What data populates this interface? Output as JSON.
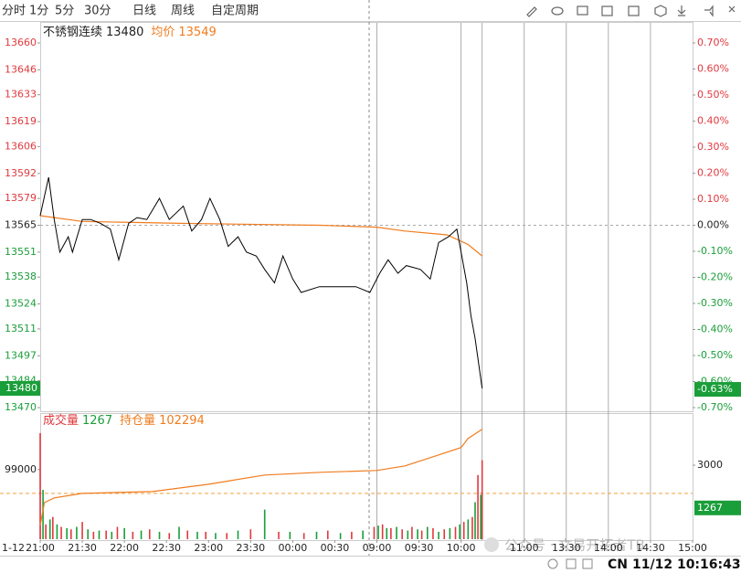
{
  "toolbar": {
    "tabs": [
      "分时",
      "1分",
      "5分",
      "30分",
      "日线",
      "周线",
      "自定周期"
    ]
  },
  "chart_data": [
    {
      "type": "line",
      "title": "不锈钢连续",
      "last": 13480,
      "avg_label": "均价",
      "avg": 13549,
      "last_change": {
        "value": -0.63,
        "label": "-0.63%"
      },
      "date_label": "1-12",
      "xlim": [
        0,
        465
      ],
      "xticks": [
        {
          "value": 0,
          "label": "21:00"
        },
        {
          "value": 30,
          "label": "21:30"
        },
        {
          "value": 60,
          "label": "22:00"
        },
        {
          "value": 90,
          "label": "22:30"
        },
        {
          "value": 120,
          "label": "23:00"
        },
        {
          "value": 150,
          "label": "23:30"
        },
        {
          "value": 180,
          "label": "00:00"
        },
        {
          "value": 210,
          "label": "00:30"
        },
        {
          "value": 240,
          "label": "09:00"
        },
        {
          "value": 270,
          "label": "09:30"
        },
        {
          "value": 300,
          "label": "10:00"
        },
        {
          "value": 345,
          "label": "11:00"
        },
        {
          "value": 375,
          "label": "13:30"
        },
        {
          "value": 405,
          "label": "14:00"
        },
        {
          "value": 435,
          "label": "14:30"
        },
        {
          "value": 465,
          "label": "15:00"
        }
      ],
      "session_lines": [
        240,
        300,
        315,
        345,
        375,
        405,
        435
      ],
      "ylim": [
        13470,
        13660
      ],
      "yticks": [
        13470,
        13484,
        13497,
        13511,
        13524,
        13538,
        13551,
        13565,
        13579,
        13592,
        13606,
        13619,
        13633,
        13646,
        13660
      ],
      "y2lim": [
        -0.7,
        0.7
      ],
      "y2ticks": [
        {
          "value": 0.7,
          "label": "0.70%"
        },
        {
          "value": 0.6,
          "label": "0.60%"
        },
        {
          "value": 0.5,
          "label": "0.50%"
        },
        {
          "value": 0.4,
          "label": "0.40%"
        },
        {
          "value": 0.3,
          "label": "0.30%"
        },
        {
          "value": 0.2,
          "label": "0.20%"
        },
        {
          "value": 0.1,
          "label": "0.10%"
        },
        {
          "value": 0,
          "label": "0.00%"
        },
        {
          "value": -0.1,
          "label": "-0.10%"
        },
        {
          "value": -0.2,
          "label": "-0.20%"
        },
        {
          "value": -0.3,
          "label": "-0.30%"
        },
        {
          "value": -0.4,
          "label": "-0.40%"
        },
        {
          "value": -0.5,
          "label": "-0.50%"
        },
        {
          "value": -0.6,
          "label": "-0.60%"
        },
        {
          "value": -0.7,
          "label": "-0.70%"
        }
      ],
      "ref_line": 13565,
      "series": [
        {
          "color": "#000000",
          "x": [
            0,
            6,
            10,
            14,
            20,
            23,
            30,
            36,
            43,
            50,
            56,
            63,
            69,
            76,
            85,
            92,
            102,
            108,
            115,
            121,
            128,
            134,
            141,
            147,
            154,
            160,
            167,
            173,
            180,
            186,
            199,
            212,
            225,
            235,
            242,
            248,
            255,
            261,
            271,
            278,
            284,
            291,
            297,
            300,
            304,
            307,
            310,
            315
          ],
          "values": [
            13570,
            13590,
            13568,
            13551,
            13559,
            13551,
            13568,
            13568,
            13566,
            13563,
            13547,
            13566,
            13569,
            13568,
            13579,
            13568,
            13575,
            13562,
            13568,
            13579,
            13568,
            13554,
            13559,
            13551,
            13549,
            13542,
            13535,
            13549,
            13537,
            13530,
            13533,
            13533,
            13533,
            13530,
            13540,
            13547,
            13540,
            13544,
            13542,
            13537,
            13556,
            13559,
            13563,
            13551,
            13535,
            13518,
            13506,
            13480
          ]
        },
        {
          "name": "均价",
          "color": "#f07c1e",
          "x": [
            0,
            30,
            100,
            200,
            240,
            260,
            290,
            305,
            315
          ],
          "values": [
            13570,
            13567,
            13566,
            13565,
            13564,
            13562,
            13560,
            13555,
            13549
          ]
        }
      ]
    },
    {
      "type": "bar",
      "last": 1267,
      "oi": 102294,
      "ylim": [
        93300,
        103400
      ],
      "yticks": [
        99000
      ],
      "y2lim": [
        0,
        5000
      ],
      "y2ticks": [
        3000
      ],
      "ref_line": 97050,
      "series": [
        {
          "name": "持仓量",
          "type": "line",
          "color": "#f07c1e",
          "x": [
            0,
            3,
            10,
            30,
            80,
            120,
            160,
            200,
            240,
            260,
            280,
            300,
            305,
            315
          ],
          "values": [
            94425,
            96300,
            96680,
            97050,
            97200,
            97800,
            98550,
            98775,
            98925,
            99300,
            100050,
            100800,
            101550,
            102294
          ]
        },
        {
          "name": "成交量",
          "axis": "y2",
          "color": "#e0393e",
          "x": [
            0,
            4,
            9,
            15,
            22,
            30,
            38,
            47,
            55,
            66,
            78,
            92,
            105,
            118,
            133,
            150,
            170,
            188,
            205,
            222,
            238,
            244,
            250,
            258,
            265,
            272,
            280,
            288,
            296,
            302,
            308,
            312,
            315
          ],
          "values": [
            4300,
            600,
            900,
            500,
            400,
            700,
            300,
            350,
            500,
            300,
            400,
            250,
            350,
            300,
            250,
            400,
            300,
            250,
            350,
            300,
            500,
            600,
            450,
            400,
            500,
            350,
            450,
            400,
            500,
            700,
            900,
            2600,
            3200
          ]
        },
        {
          "axis": "y2",
          "color": "#1a9e3a",
          "x": [
            2,
            7,
            12,
            19,
            26,
            34,
            42,
            51,
            60,
            72,
            85,
            99,
            112,
            125,
            141,
            160,
            178,
            197,
            214,
            230,
            241,
            247,
            254,
            262,
            269,
            276,
            284,
            292,
            299,
            305,
            310,
            314
          ],
          "values": [
            2000,
            800,
            600,
            450,
            500,
            400,
            350,
            300,
            450,
            350,
            300,
            500,
            300,
            250,
            350,
            1200,
            300,
            300,
            250,
            350,
            550,
            450,
            500,
            350,
            400,
            500,
            300,
            450,
            600,
            800,
            1500,
            1800
          ]
        }
      ]
    }
  ],
  "watermark": "公众号 · 文易开拓者TB",
  "status": {
    "market": "CN",
    "datetime": "11/12 10:16:43"
  }
}
